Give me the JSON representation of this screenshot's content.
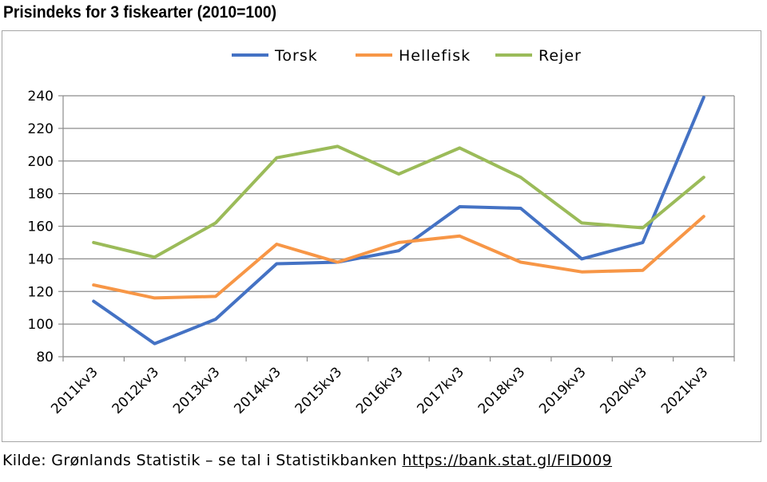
{
  "title": "Prisindeks for 3 fiskearter (2010=100)",
  "source": {
    "text": "Kilde: Grønlands Statistik – se tal i Statistikbanken ",
    "link_text": "https://bank.stat.gl/FID009"
  },
  "chart_data": {
    "type": "line",
    "title": "Prisindeks for 3 fiskearter (2010=100)",
    "xlabel": "",
    "ylabel": "",
    "categories": [
      "2011kv3",
      "2012kv3",
      "2013kv3",
      "2014kv3",
      "2015kv3",
      "2016kv3",
      "2017kv3",
      "2018kv3",
      "2019kv3",
      "2020kv3",
      "2021kv3"
    ],
    "ylim": [
      80,
      240
    ],
    "yticks": [
      80,
      100,
      120,
      140,
      160,
      180,
      200,
      220,
      240
    ],
    "grid": "horizontal",
    "legend_position": "top",
    "series": [
      {
        "name": "Torsk",
        "color": "#4472c4",
        "values": [
          114,
          88,
          103,
          137,
          138,
          145,
          172,
          171,
          140,
          150,
          239
        ]
      },
      {
        "name": "Hellefisk",
        "color": "#f79646",
        "values": [
          124,
          116,
          117,
          149,
          138,
          150,
          154,
          138,
          132,
          133,
          166
        ]
      },
      {
        "name": "Rejer",
        "color": "#9bbb59",
        "values": [
          150,
          141,
          162,
          202,
          209,
          192,
          208,
          190,
          162,
          159,
          190
        ]
      }
    ]
  }
}
